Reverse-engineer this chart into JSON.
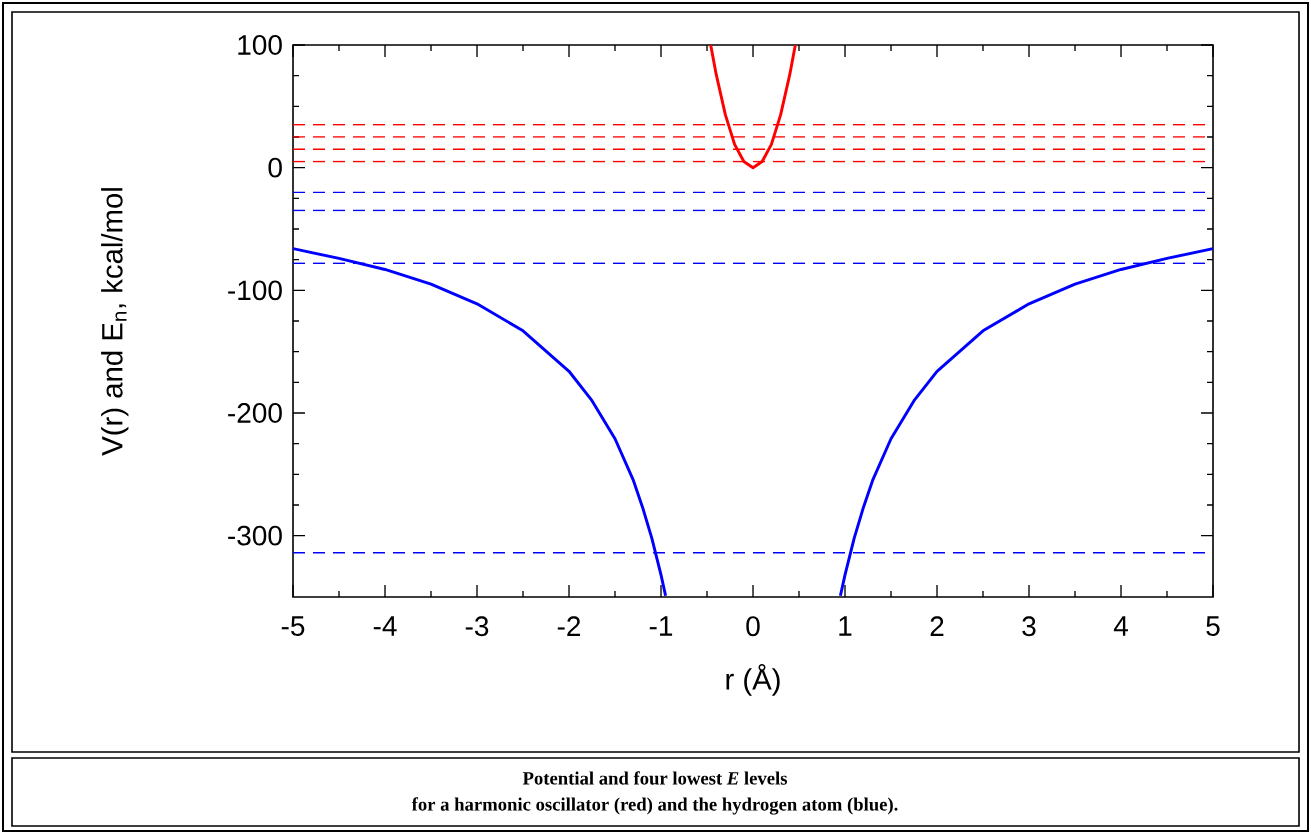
{
  "chart_data": {
    "type": "line",
    "xlabel": "r (Å)",
    "ylabel": "V(r) and E$_{n}$, kcal/mol",
    "xlim": [
      -5,
      5
    ],
    "ylim": [
      -350,
      100
    ],
    "xticks": [
      -5,
      -4,
      -3,
      -2,
      -1,
      0,
      1,
      2,
      3,
      4,
      5
    ],
    "yticks": [
      -300,
      -200,
      -100,
      0,
      100
    ],
    "grid": false,
    "marker": "none",
    "line_style": "solid",
    "series": [
      {
        "color": "#ff0000",
        "x": [
          -0.46,
          -0.4,
          -0.3,
          -0.2,
          -0.1,
          0,
          0.1,
          0.2,
          0.3,
          0.4,
          0.46
        ],
        "values": [
          100,
          76,
          43,
          19,
          5,
          0,
          5,
          19,
          43,
          76,
          100
        ]
      },
      {
        "color": "#0000ff",
        "x": [
          -5,
          -4.5,
          -4,
          -3.5,
          -3,
          -2.5,
          -2,
          -1.75,
          -1.5,
          -1.3,
          -1.2,
          -1.1,
          -1,
          -0.95,
          0,
          0.95,
          1,
          1.1,
          1.2,
          1.3,
          1.5,
          1.75,
          2,
          2.5,
          3,
          3.5,
          4,
          4.5,
          5
        ],
        "values": [
          -66,
          -74,
          -83,
          -95,
          -111,
          -133,
          -166,
          -190,
          -221,
          -255,
          -277,
          -302,
          -332,
          -349,
          null,
          -349,
          -332,
          -302,
          -277,
          -255,
          -221,
          -190,
          -166,
          -133,
          -111,
          -95,
          -83,
          -74,
          -66
        ]
      }
    ],
    "ref_lines": [
      {
        "axis": "y",
        "value": 5,
        "color": "#ff0000",
        "line_style": "dashed"
      },
      {
        "axis": "y",
        "value": 15,
        "color": "#ff0000",
        "line_style": "dashed"
      },
      {
        "axis": "y",
        "value": 25,
        "color": "#ff0000",
        "line_style": "dashed"
      },
      {
        "axis": "y",
        "value": 35,
        "color": "#ff0000",
        "line_style": "dashed"
      },
      {
        "axis": "y",
        "value": -20,
        "color": "#0000ff",
        "line_style": "dashed"
      },
      {
        "axis": "y",
        "value": -35,
        "color": "#0000ff",
        "line_style": "dashed"
      },
      {
        "axis": "y",
        "value": -78,
        "color": "#0000ff",
        "line_style": "dashed"
      },
      {
        "axis": "y",
        "value": -314,
        "color": "#0000ff",
        "line_style": "dashed"
      }
    ],
    "annotations": [
      "Potential and four lowest *E* levels",
      "for a harmonic oscillator (red) and the hydrogen atom (blue)."
    ]
  }
}
